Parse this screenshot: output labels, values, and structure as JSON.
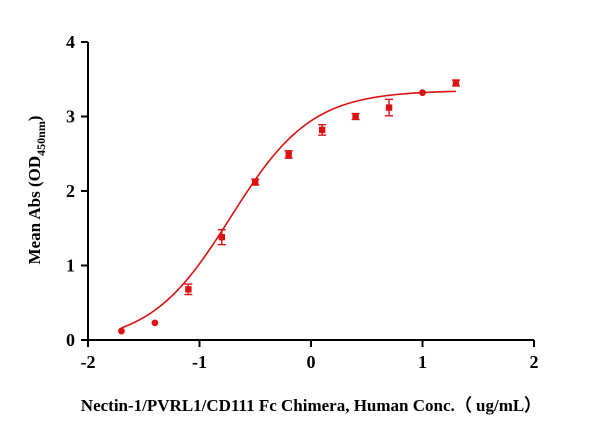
{
  "chart_data": {
    "type": "scatter",
    "xlabel": "Nectin-1/PVRL1/CD111 Fc Chimera, Human Conc.（ ug/mL）",
    "ylabel_main": "Mean Abs (OD",
    "ylabel_sub": "450nm",
    "ylabel_close": ")",
    "xlim": [
      -2,
      2
    ],
    "ylim": [
      0,
      4
    ],
    "xticks": [
      -2,
      -1,
      0,
      1,
      2
    ],
    "xtick_labels": [
      "-2",
      "-1",
      "0",
      "1",
      "2"
    ],
    "yticks": [
      0,
      1,
      2,
      3,
      4
    ],
    "ytick_labels": [
      "0",
      "1",
      "2",
      "3",
      "4"
    ],
    "grid": false,
    "color": "#dd1111",
    "points": [
      {
        "x": -1.7,
        "y": 0.12,
        "err": 0.0,
        "marker": "circle"
      },
      {
        "x": -1.4,
        "y": 0.23,
        "err": 0.0,
        "marker": "circle"
      },
      {
        "x": -1.1,
        "y": 0.68,
        "err": 0.07,
        "marker": "square"
      },
      {
        "x": -0.8,
        "y": 1.38,
        "err": 0.1,
        "marker": "square"
      },
      {
        "x": -0.5,
        "y": 2.12,
        "err": 0.04,
        "marker": "square"
      },
      {
        "x": -0.2,
        "y": 2.49,
        "err": 0.05,
        "marker": "square"
      },
      {
        "x": 0.1,
        "y": 2.82,
        "err": 0.07,
        "marker": "square"
      },
      {
        "x": 0.4,
        "y": 3.0,
        "err": 0.04,
        "marker": "square"
      },
      {
        "x": 0.7,
        "y": 3.12,
        "err": 0.11,
        "marker": "square"
      },
      {
        "x": 1.0,
        "y": 3.32,
        "err": 0.0,
        "marker": "circle"
      },
      {
        "x": 1.3,
        "y": 3.45,
        "err": 0.04,
        "marker": "square"
      }
    ],
    "fit": {
      "model": "4PL",
      "bottom": -0.05,
      "top": 3.35,
      "logEC50": -0.72,
      "hill": 1.2,
      "x_range": [
        -1.7,
        1.3
      ]
    }
  }
}
